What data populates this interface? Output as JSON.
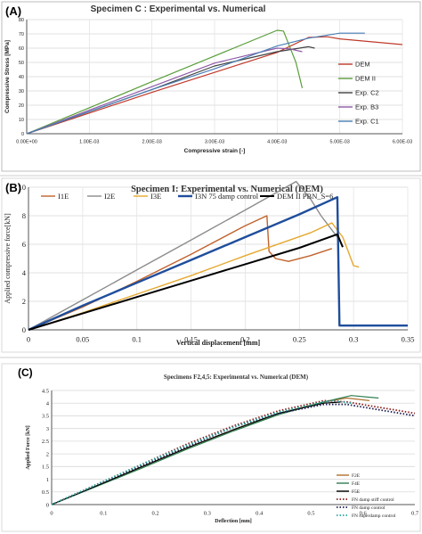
{
  "chart_data": [
    {
      "panel_label": "(A)",
      "type": "line",
      "title": "Specimen C :  Experimental vs. Numerical",
      "xlabel": "Compressive strain [-]",
      "ylabel": "Compressive Stress [MPa]",
      "xlim": [
        0,
        0.006
      ],
      "ylim": [
        0,
        80
      ],
      "x_ticks": [
        "0.00E+00",
        "1.00E-03",
        "2.00E-03",
        "3.00E-03",
        "4.00E-03",
        "5.00E-03",
        "6.00E-03"
      ],
      "y_ticks": [
        "0",
        "10",
        "20",
        "30",
        "40",
        "50",
        "60",
        "70",
        "80"
      ],
      "grid": true,
      "legend_position": "right",
      "colors": {
        "DEM": "#c0392b",
        "DEM II": "#5a9e3a",
        "Exp. C2": "#404040",
        "Exp. B3": "#8e5aa8",
        "Exp. C1": "#4a7fb5"
      },
      "series": [
        {
          "name": "DEM",
          "x": [
            0,
            0.001,
            0.002,
            0.003,
            0.004,
            0.0045,
            0.0048,
            0.005,
            0.006
          ],
          "y": [
            0,
            14.5,
            29,
            43,
            57,
            67.5,
            68,
            66.5,
            62.5
          ]
        },
        {
          "name": "DEM II",
          "x": [
            0,
            0.001,
            0.002,
            0.003,
            0.004,
            0.0041,
            0.0043,
            0.0044
          ],
          "y": [
            0,
            18.2,
            36.5,
            54.5,
            72.5,
            72,
            50,
            32
          ]
        },
        {
          "name": "Exp. C2",
          "x": [
            0,
            0.001,
            0.002,
            0.003,
            0.004,
            0.0045,
            0.0046
          ],
          "y": [
            0,
            15.5,
            31,
            47.5,
            57.5,
            61,
            60
          ]
        },
        {
          "name": "Exp. B3",
          "x": [
            0,
            0.001,
            0.002,
            0.003,
            0.004,
            0.0042,
            0.0044
          ],
          "y": [
            0,
            16.5,
            33,
            49.5,
            60,
            59.5,
            57.5
          ]
        },
        {
          "name": "Exp. C1",
          "x": [
            0,
            0.001,
            0.002,
            0.003,
            0.004,
            0.0045,
            0.005,
            0.0054
          ],
          "y": [
            0,
            15.5,
            31,
            45.5,
            61.5,
            67,
            70.5,
            70.5
          ]
        }
      ]
    },
    {
      "panel_label": "(B)",
      "type": "line",
      "title": "Specimen I: Experimental vs. Numerical (DEM)",
      "xlabel": "Vertical displacement [mm]",
      "ylabel": "Applied compressive force[kN]",
      "xlim": [
        0,
        0.35
      ],
      "ylim": [
        0,
        10
      ],
      "x_ticks": [
        "0",
        "0.05",
        "0.1",
        "0.15",
        "0.2",
        "0.25",
        "0.3",
        "0.35"
      ],
      "y_ticks": [
        "0",
        "2",
        "4",
        "6",
        "8",
        "10"
      ],
      "grid": true,
      "legend_position": "top",
      "colors": {
        "I1E": "#c0622b",
        "I2E": "#8c8c8c",
        "I3E": "#e6a82e",
        "I3N 75 damp control": "#1f4e9c",
        "DEM II PBN_S=6": "#000000"
      },
      "series": [
        {
          "name": "I1E",
          "x": [
            0,
            0.05,
            0.1,
            0.15,
            0.2,
            0.22,
            0.222,
            0.228,
            0.24,
            0.26,
            0.28
          ],
          "y": [
            0,
            1.6,
            3.4,
            5.3,
            7.3,
            8,
            5.5,
            5,
            4.8,
            5.2,
            5.7
          ]
        },
        {
          "name": "I2E",
          "x": [
            0,
            0.05,
            0.1,
            0.15,
            0.2,
            0.247,
            0.26,
            0.27,
            0.285
          ],
          "y": [
            0,
            2.1,
            4.2,
            6.3,
            8.4,
            10.4,
            9.2,
            8,
            6.5
          ]
        },
        {
          "name": "I3E",
          "x": [
            0,
            0.05,
            0.1,
            0.15,
            0.2,
            0.26,
            0.28,
            0.29,
            0.295,
            0.3,
            0.305
          ],
          "y": [
            0,
            1.2,
            2.5,
            3.8,
            5.2,
            6.8,
            7.5,
            6.5,
            5.5,
            4.5,
            4.4
          ]
        },
        {
          "name": "I3N 75 damp control",
          "x": [
            0,
            0.05,
            0.1,
            0.15,
            0.2,
            0.25,
            0.285,
            0.287,
            0.29,
            0.35
          ],
          "y": [
            0,
            1.7,
            3.3,
            4.9,
            6.5,
            8.1,
            9.3,
            0.3,
            0.3,
            0.3
          ]
        },
        {
          "name": "DEM II PBN_S=6",
          "x": [
            0,
            0.05,
            0.1,
            0.15,
            0.2,
            0.25,
            0.285,
            0.29
          ],
          "y": [
            0,
            1.15,
            2.3,
            3.45,
            4.6,
            5.75,
            6.7,
            5.8
          ]
        }
      ]
    },
    {
      "panel_label": "(C)",
      "type": "line",
      "title": "Specimens F2,4,5: Experimental vs. Numerical (DEM)",
      "xlabel": "Deflection [mm]",
      "ylabel": "Applied Force [kN]",
      "xlim": [
        0,
        0.8
      ],
      "ylim": [
        0,
        4.5
      ],
      "x_ticks": [
        "0",
        "0.1",
        "0.2",
        "0.3",
        "0.4",
        "0.5",
        "0.6",
        "0.7"
      ],
      "y_ticks": [
        "0",
        "0.5",
        "1",
        "1.5",
        "2",
        "2.5",
        "3",
        "3.5",
        "4",
        "4.5"
      ],
      "grid": true,
      "legend_position": "bottom-right",
      "colors": {
        "F2E": "#b07030",
        "F4E": "#2e7d4f",
        "F5E": "#000000",
        "FN damp stiff control": "#8b1a1a",
        "FN damp control": "#1a1a4e",
        "FN superdamp control": "#2aa7a0"
      },
      "series": [
        {
          "name": "F2E",
          "x": [
            0,
            0.1,
            0.2,
            0.3,
            0.4,
            0.5,
            0.6,
            0.65,
            0.7
          ],
          "y": [
            0,
            0.75,
            1.5,
            2.25,
            2.95,
            3.6,
            4.05,
            4.2,
            4.1
          ]
        },
        {
          "name": "F4E",
          "x": [
            0,
            0.1,
            0.2,
            0.3,
            0.4,
            0.5,
            0.6,
            0.66,
            0.72
          ],
          "y": [
            0,
            0.72,
            1.45,
            2.2,
            2.9,
            3.55,
            4.05,
            4.3,
            4.2
          ]
        },
        {
          "name": "F5E",
          "x": [
            0,
            0.1,
            0.2,
            0.3,
            0.4,
            0.5,
            0.6,
            0.64
          ],
          "y": [
            0,
            0.75,
            1.5,
            2.25,
            2.95,
            3.6,
            4,
            4.05
          ]
        },
        {
          "name": "FN damp stiff control",
          "x": [
            0,
            0.1,
            0.2,
            0.3,
            0.4,
            0.5,
            0.6,
            0.65,
            0.7,
            0.8
          ],
          "y": [
            0,
            0.8,
            1.6,
            2.4,
            3.1,
            3.7,
            4.1,
            4.05,
            3.9,
            3.6
          ]
        },
        {
          "name": "FN damp control",
          "x": [
            0,
            0.1,
            0.2,
            0.3,
            0.4,
            0.5,
            0.6,
            0.65,
            0.7,
            0.8
          ],
          "y": [
            0,
            0.78,
            1.55,
            2.3,
            3.05,
            3.6,
            3.95,
            3.95,
            3.8,
            3.5
          ]
        },
        {
          "name": "FN superdamp control",
          "x": [
            0,
            0.1,
            0.2,
            0.3,
            0.4,
            0.5,
            0.6,
            0.62,
            0.66
          ],
          "y": [
            0,
            0.8,
            1.6,
            2.35,
            3.05,
            3.65,
            4.05,
            4.1,
            4
          ]
        }
      ]
    }
  ]
}
